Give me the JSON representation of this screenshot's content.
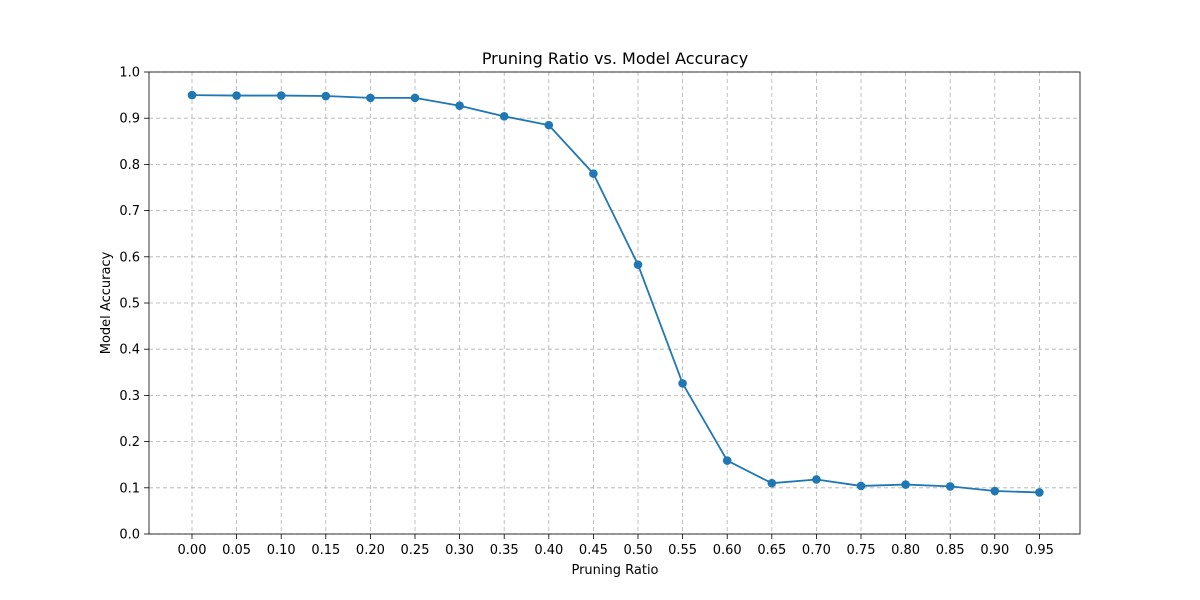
{
  "chart_data": {
    "type": "line",
    "title": "Pruning Ratio vs. Model Accuracy",
    "xlabel": "Pruning Ratio",
    "ylabel": "Model Accuracy",
    "x": [
      "0.00",
      "0.05",
      "0.10",
      "0.15",
      "0.20",
      "0.25",
      "0.30",
      "0.35",
      "0.40",
      "0.45",
      "0.50",
      "0.55",
      "0.60",
      "0.65",
      "0.70",
      "0.75",
      "0.80",
      "0.85",
      "0.90",
      "0.95"
    ],
    "series": [
      {
        "values": [
          0.95,
          0.949,
          0.949,
          0.948,
          0.944,
          0.944,
          0.927,
          0.904,
          0.885,
          0.78,
          0.583,
          0.326,
          0.159,
          0.11,
          0.118,
          0.104,
          0.107,
          0.103,
          0.093,
          0.09
        ],
        "color": "#1f77b4",
        "marker": "circle"
      }
    ],
    "yticks": [
      "0.0",
      "0.1",
      "0.2",
      "0.3",
      "0.4",
      "0.5",
      "0.6",
      "0.7",
      "0.8",
      "0.9",
      "1.0"
    ],
    "ylim": [
      0,
      1
    ],
    "grid": true,
    "grid_style": "dashed"
  }
}
